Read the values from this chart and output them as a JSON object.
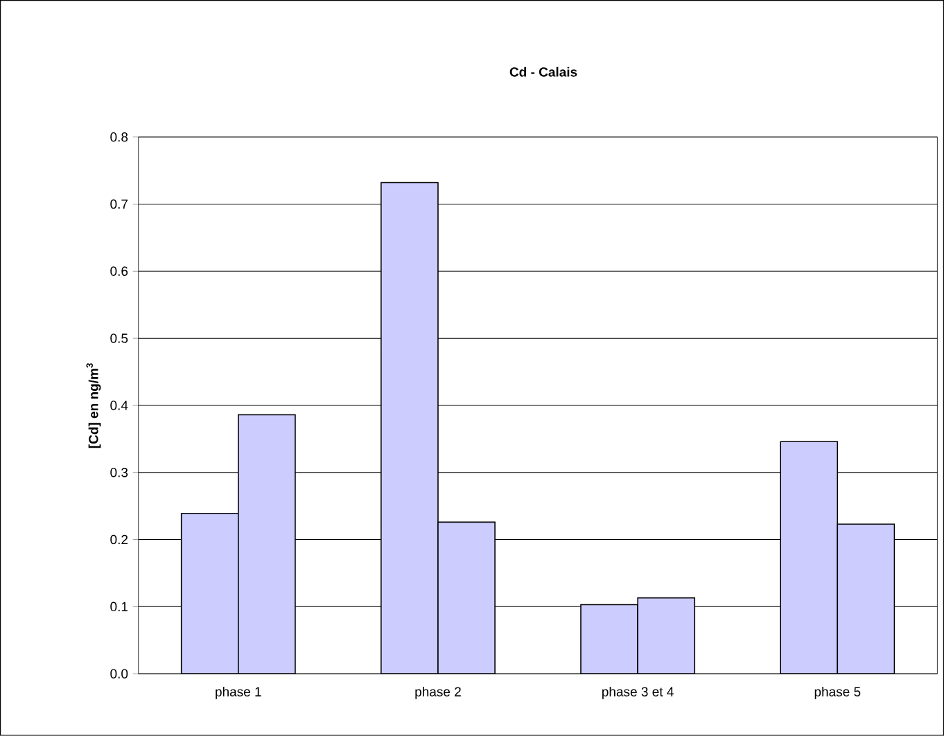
{
  "chart_data": {
    "type": "bar",
    "title": "Cd - Calais",
    "ylabel": "[Cd] en ng/m$^{3}$",
    "categories": [
      "phase 1",
      "phase 2",
      "phase 3 et 4",
      "phase 5"
    ],
    "series": [
      {
        "color": "#ccccff",
        "values": [
          0.239,
          0.732,
          0.103,
          0.346
        ]
      },
      {
        "color": "#ccccff",
        "values": [
          0.386,
          0.226,
          0.113,
          0.223
        ]
      }
    ],
    "ylim": [
      0,
      0.8
    ],
    "yticks": [
      {
        "value": 0,
        "label": "0.0"
      },
      0.1,
      0.2,
      0.3,
      0.4,
      0.5,
      0.6,
      0.7,
      0.8
    ],
    "grid": "y"
  }
}
